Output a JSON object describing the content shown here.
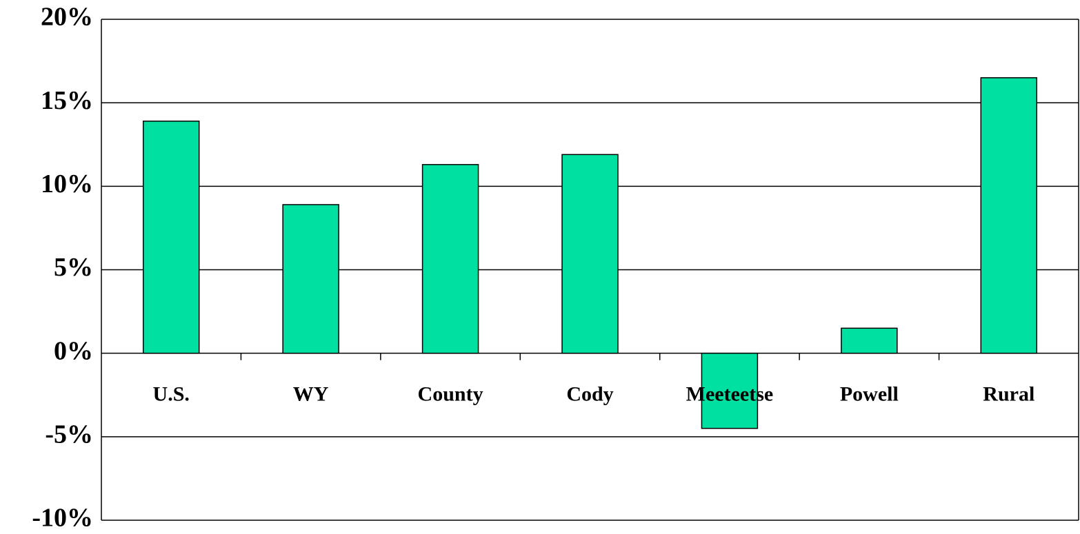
{
  "chart_data": {
    "type": "bar",
    "categories": [
      "U.S.",
      "WY",
      "County",
      "Cody",
      "Meeteetse",
      "Powell",
      "Rural"
    ],
    "values": [
      13.9,
      8.9,
      11.3,
      11.9,
      -4.5,
      1.5,
      16.5
    ],
    "color": "#00e0a0",
    "ylim": [
      -10,
      20
    ],
    "yticks": [
      {
        "value": -10,
        "label": "-10%"
      },
      {
        "value": -5,
        "label": "-5%"
      },
      {
        "value": 0,
        "label": "0%"
      },
      {
        "value": 5,
        "label": "5%"
      },
      {
        "value": 10,
        "label": "10%"
      },
      {
        "value": 15,
        "label": "15%"
      },
      {
        "value": 20,
        "label": "20%"
      }
    ],
    "grid": true
  }
}
